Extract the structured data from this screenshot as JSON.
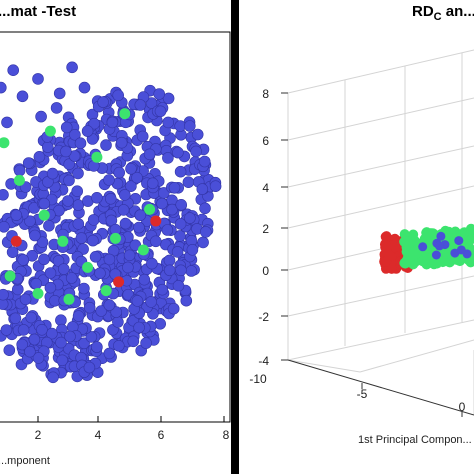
{
  "chart_data": [
    {
      "type": "scatter",
      "title": "...mat -Test",
      "xlabel": "...mponent",
      "ylabel": "",
      "xlim": [
        -1.2,
        8
      ],
      "x_ticks": [
        "2",
        "4",
        "6",
        "8"
      ],
      "grid": false,
      "series": [
        {
          "name": "",
          "color": "#4a4fd8",
          "points": [
            [
              0.8,
              5.6
            ],
            [
              1.5,
              5.3
            ],
            [
              2.0,
              5.9
            ],
            [
              2.6,
              4.9
            ],
            [
              1.0,
              4.4
            ],
            [
              3.1,
              6.3
            ],
            [
              2.3,
              3.9
            ],
            [
              0.4,
              3.1
            ],
            [
              1.7,
              3.0
            ],
            [
              3.6,
              4.1
            ],
            [
              4.1,
              5.1
            ],
            [
              4.7,
              3.7
            ],
            [
              5.0,
              2.8
            ],
            [
              5.6,
              3.3
            ],
            [
              6.2,
              4.4
            ],
            [
              6.6,
              2.7
            ],
            [
              7.1,
              3.4
            ],
            [
              7.3,
              2.1
            ],
            [
              6.0,
              1.6
            ],
            [
              5.3,
              1.2
            ],
            [
              4.5,
              0.7
            ],
            [
              3.9,
              1.8
            ],
            [
              3.0,
              2.4
            ],
            [
              2.2,
              1.6
            ],
            [
              1.3,
              1.2
            ],
            [
              0.6,
              2.2
            ],
            [
              -0.2,
              1.5
            ],
            [
              -0.7,
              3.6
            ],
            [
              0.1,
              4.9
            ],
            [
              1.9,
              0.5
            ],
            [
              2.8,
              0.1
            ],
            [
              3.4,
              -0.4
            ],
            [
              4.0,
              -0.8
            ],
            [
              4.9,
              -0.6
            ],
            [
              5.8,
              0.3
            ],
            [
              6.6,
              0.9
            ],
            [
              0.3,
              -0.3
            ],
            [
              1.1,
              -0.9
            ],
            [
              2.4,
              -1.3
            ],
            [
              3.2,
              -1.8
            ],
            [
              4.3,
              -1.9
            ],
            [
              -0.4,
              0.2
            ],
            [
              0.9,
              0.8
            ],
            [
              3.8,
              2.9
            ],
            [
              2.7,
              5.4
            ],
            [
              1.2,
              6.2
            ],
            [
              3.5,
              5.6
            ],
            [
              4.4,
              4.4
            ],
            [
              5.3,
              5.0
            ],
            [
              0.0,
              -1.4
            ],
            [
              1.6,
              -1.7
            ],
            [
              2.9,
              3.4
            ],
            [
              3.3,
              0.9
            ],
            [
              4.8,
              1.9
            ],
            [
              5.7,
              2.3
            ],
            [
              6.9,
              1.1
            ],
            [
              2.1,
              4.6
            ],
            [
              0.5,
              0.3
            ]
          ]
        },
        {
          "name": "",
          "color": "#3ce46e",
          "points": [
            [
              0.2,
              4.3
            ],
            [
              0.9,
              3.7
            ],
            [
              2.4,
              4.1
            ],
            [
              3.9,
              3.2
            ],
            [
              4.8,
              4.7
            ],
            [
              1.4,
              2.4
            ],
            [
              2.2,
              1.2
            ],
            [
              4.5,
              0.4
            ],
            [
              5.6,
              1.4
            ],
            [
              3.6,
              -0.6
            ],
            [
              2.8,
              0.3
            ],
            [
              1.1,
              -0.9
            ],
            [
              4.2,
              -1.4
            ],
            [
              5.4,
              0.0
            ],
            [
              2.0,
              -1.5
            ],
            [
              3.0,
              -1.7
            ]
          ]
        },
        {
          "name": "",
          "color": "#dc2a2a",
          "points": [
            [
              1.3,
              0.3
            ],
            [
              4.6,
              -1.1
            ],
            [
              5.8,
              1.0
            ],
            [
              0.5,
              -1.9
            ]
          ]
        }
      ]
    },
    {
      "type": "scatter",
      "title": "RD",
      "title_subscript": "C",
      "title_tail": " an...",
      "xlabel": "1st Principal Compon...",
      "y_ticks": [
        "8",
        "6",
        "4",
        "2",
        "0",
        "-2",
        "-4"
      ],
      "x_ticks": [
        "-10",
        "-5",
        "0"
      ],
      "grid": true,
      "projection": "3d",
      "series": [
        {
          "name": "",
          "color": "#dc2a2a",
          "cluster": [
            -4.6,
            1.0
          ]
        },
        {
          "name": "",
          "color": "#3ce46e",
          "cluster": [
            -1.0,
            1.1
          ]
        }
      ]
    }
  ]
}
